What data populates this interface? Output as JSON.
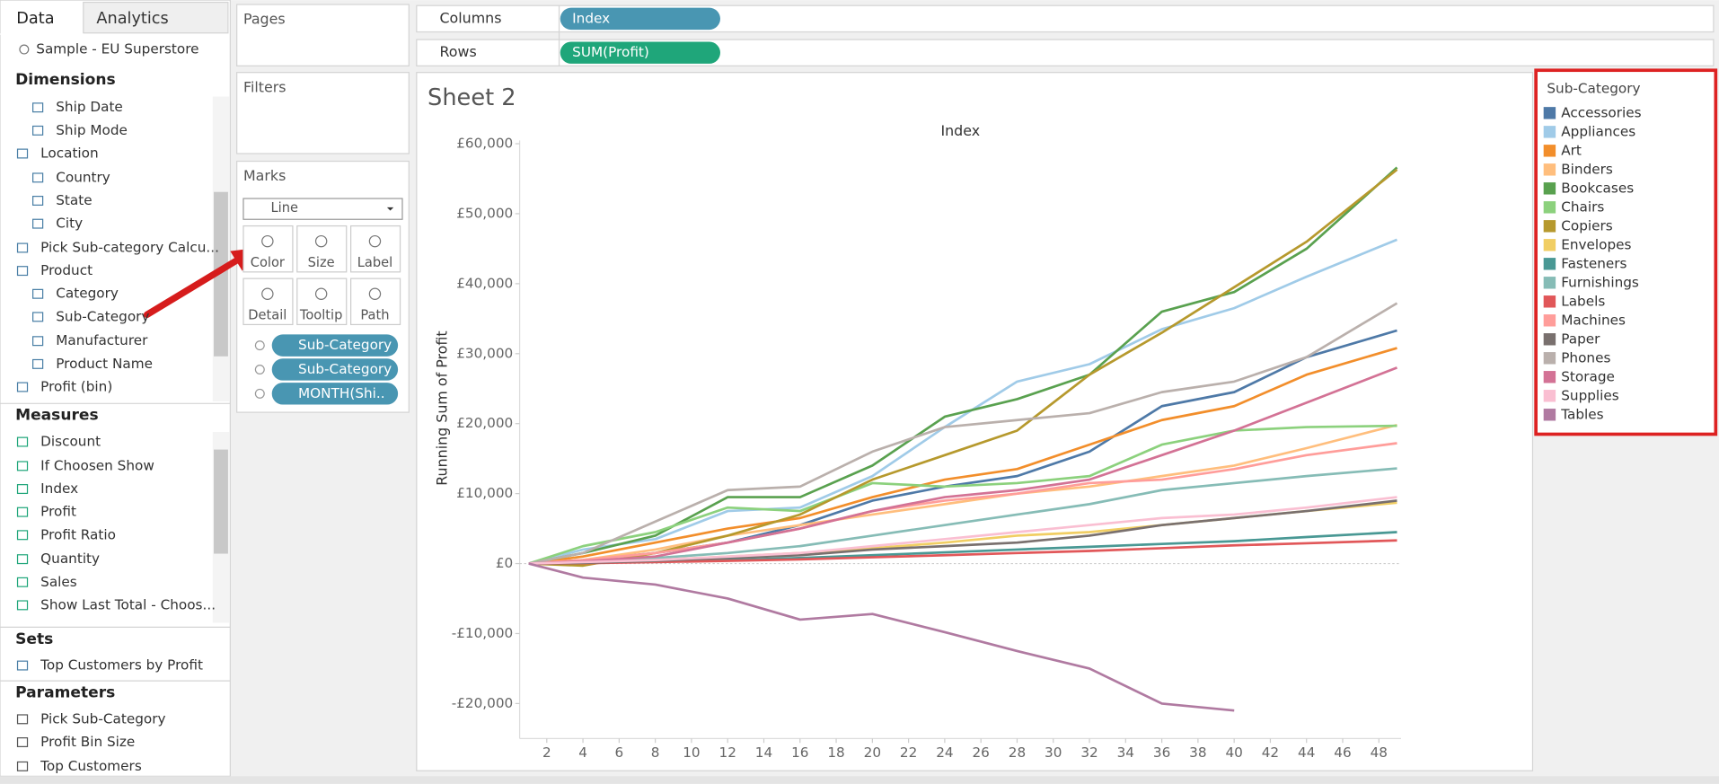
{
  "ui": {
    "tabs": [
      "Data",
      "Analytics"
    ],
    "datasource": "Sample - EU Superstore",
    "dimensions": {
      "title": "Dimensions",
      "items": [
        "Ship Date",
        "Ship Mode",
        "Location",
        "Country",
        "State",
        "City",
        "Pick Sub-category Calcu...",
        "Product",
        "Category",
        "Sub-Category",
        "Manufacturer",
        "Product Name",
        "Profit (bin)"
      ]
    },
    "measures": {
      "title": "Measures",
      "items": [
        "Discount",
        "If Choosen Show",
        "Index",
        "Profit",
        "Profit Ratio",
        "Quantity",
        "Sales",
        "Show Last Total  - Choos..."
      ]
    },
    "sets": {
      "title": "Sets",
      "items": [
        "Top Customers by Profit"
      ]
    },
    "parameters": {
      "title": "Parameters",
      "items": [
        "Pick Sub-Category",
        "Profit Bin Size",
        "Top Customers"
      ]
    },
    "pages": "Pages",
    "filters": "Filters",
    "marks": {
      "title": "Marks",
      "mark_type": "Line",
      "buttons": [
        "Color",
        "Size",
        "Label",
        "Detail",
        "Tooltip",
        "Path"
      ],
      "pills": [
        "Sub-Category",
        "Sub-Category",
        "MONTH(Shi.."
      ]
    },
    "shelves": [
      {
        "label": "Columns",
        "pill": "Index"
      },
      {
        "label": "Rows",
        "pill": "SUM(Profit)"
      }
    ],
    "legend_title": "Sub-Category"
  },
  "chart_data": {
    "type": "line",
    "title": "Sheet 2",
    "x_label": "Index",
    "y_label": "Running Sum of Profit",
    "legend": "right",
    "x": [
      1,
      4,
      8,
      12,
      16,
      20,
      24,
      28,
      32,
      36,
      40,
      44,
      49
    ],
    "xlim": [
      0.5,
      49.5
    ],
    "xticks": [
      2,
      4,
      6,
      8,
      10,
      12,
      14,
      16,
      18,
      20,
      22,
      24,
      26,
      28,
      30,
      32,
      34,
      36,
      38,
      40,
      42,
      44,
      46,
      48
    ],
    "ylim": [
      -25000,
      60000
    ],
    "yticks": [
      {
        "value": -20000,
        "label": "-£20,000"
      },
      {
        "value": -10000,
        "label": "-£10,000"
      },
      {
        "value": 0,
        "label": "£0"
      },
      {
        "value": 10000,
        "label": "£10,000"
      },
      {
        "value": 20000,
        "label": "£20,000"
      },
      {
        "value": 30000,
        "label": "£30,000"
      },
      {
        "value": 40000,
        "label": "£40,000"
      },
      {
        "value": 50000,
        "label": "£50,000"
      },
      {
        "value": 60000,
        "label": "£60,000"
      }
    ],
    "series": [
      {
        "name": "Accessories",
        "color": "#4e79a7",
        "values": [
          0,
          500,
          1500,
          3000,
          5500,
          9000,
          11000,
          12500,
          16000,
          22500,
          24500,
          29500,
          33300
        ]
      },
      {
        "name": "Appliances",
        "color": "#a0cbe8",
        "values": [
          0,
          2000,
          3500,
          7500,
          8000,
          12500,
          19500,
          26000,
          28500,
          33500,
          36500,
          41000,
          46300
        ]
      },
      {
        "name": "Art",
        "color": "#f28e2b",
        "values": [
          0,
          1000,
          3000,
          5000,
          6500,
          9500,
          12000,
          13500,
          17000,
          20500,
          22500,
          27000,
          30800
        ]
      },
      {
        "name": "Binders",
        "color": "#ffbe7d",
        "values": [
          0,
          500,
          2000,
          4000,
          5500,
          7000,
          8500,
          10000,
          11000,
          12500,
          14000,
          16500,
          19800
        ]
      },
      {
        "name": "Bookcases",
        "color": "#59a14f",
        "values": [
          0,
          1500,
          4000,
          9500,
          9500,
          14000,
          21000,
          23500,
          27000,
          36000,
          38800,
          45000,
          56600
        ]
      },
      {
        "name": "Chairs",
        "color": "#8cd17d",
        "values": [
          0,
          2500,
          4500,
          8000,
          7500,
          11500,
          11000,
          11500,
          12500,
          17000,
          19000,
          19500,
          19700
        ]
      },
      {
        "name": "Copiers",
        "color": "#b6992d",
        "values": [
          0,
          -300,
          1500,
          4000,
          7000,
          12000,
          15500,
          19000,
          27000,
          33000,
          39500,
          46000,
          56300
        ]
      },
      {
        "name": "Envelopes",
        "color": "#f1ce63",
        "values": [
          0,
          200,
          500,
          1000,
          1500,
          2200,
          3000,
          4000,
          4500,
          5500,
          6500,
          7500,
          8700
        ]
      },
      {
        "name": "Fasteners",
        "color": "#499894",
        "values": [
          0,
          100,
          300,
          500,
          800,
          1200,
          1600,
          2000,
          2400,
          2800,
          3200,
          3800,
          4500
        ]
      },
      {
        "name": "Furnishings",
        "color": "#86bcb6",
        "values": [
          0,
          300,
          800,
          1500,
          2500,
          4000,
          5500,
          7000,
          8500,
          10500,
          11500,
          12500,
          13600
        ]
      },
      {
        "name": "Labels",
        "color": "#e15759",
        "values": [
          0,
          50,
          200,
          400,
          600,
          900,
          1200,
          1500,
          1800,
          2200,
          2600,
          2900,
          3300
        ]
      },
      {
        "name": "Machines",
        "color": "#ff9d9a",
        "values": [
          0,
          500,
          1500,
          3000,
          5000,
          7500,
          9000,
          10000,
          11500,
          12000,
          13500,
          15500,
          17200
        ]
      },
      {
        "name": "Paper",
        "color": "#79706e",
        "values": [
          0,
          100,
          400,
          800,
          1200,
          2000,
          2500,
          3000,
          4000,
          5500,
          6500,
          7500,
          9000
        ]
      },
      {
        "name": "Phones",
        "color": "#bab0ac",
        "values": [
          0,
          1500,
          6000,
          10500,
          11000,
          16000,
          19500,
          20500,
          21500,
          24500,
          26000,
          29500,
          37200
        ]
      },
      {
        "name": "Storage",
        "color": "#d37295",
        "values": [
          0,
          300,
          1000,
          3000,
          5000,
          7500,
          9500,
          10500,
          12000,
          15500,
          19000,
          23000,
          28000
        ]
      },
      {
        "name": "Supplies",
        "color": "#fabfd2",
        "values": [
          0,
          200,
          500,
          1000,
          1500,
          2500,
          3500,
          4500,
          5500,
          6500,
          7000,
          8000,
          9500
        ]
      },
      {
        "name": "Tables",
        "color": "#b07aa1",
        "values": [
          0,
          -2000,
          -3000,
          -5000,
          -8000,
          -7200,
          -9800,
          -12500,
          -15000,
          -20000,
          -21000,
          null,
          null
        ]
      }
    ]
  }
}
